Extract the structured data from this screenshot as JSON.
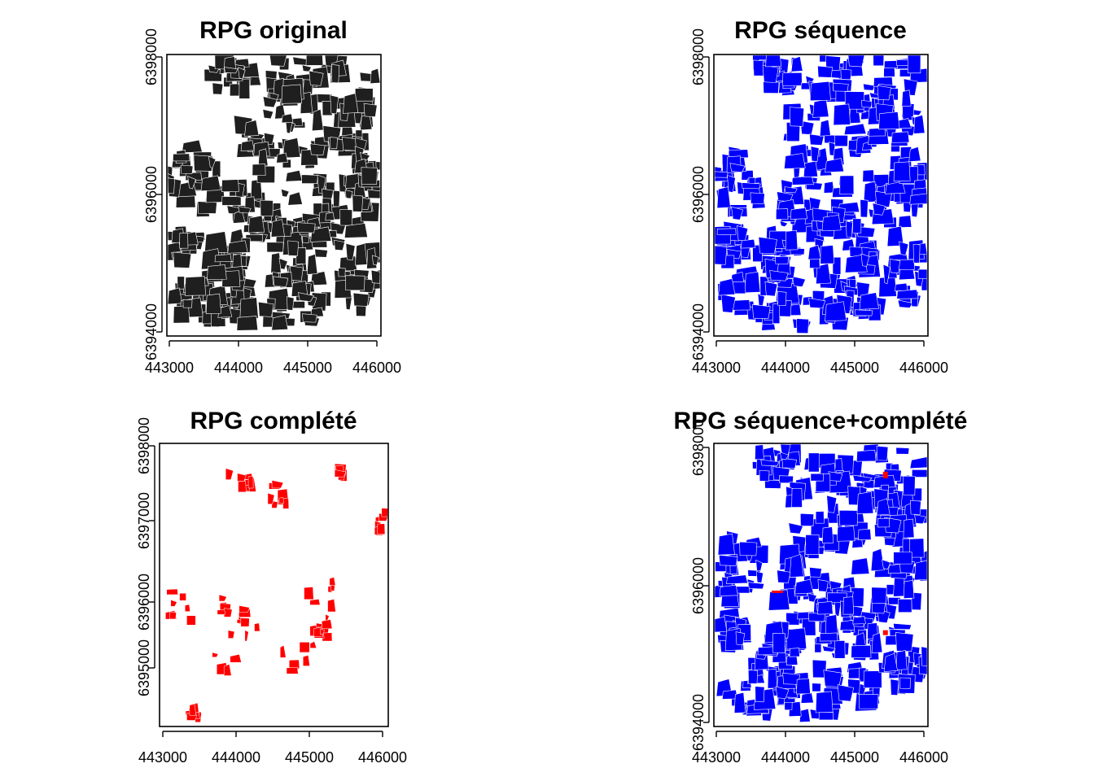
{
  "panels": [
    {
      "id": "original",
      "title": "RPG original",
      "fill_color": "#1f1f1f",
      "x_ticks": [
        "443000",
        "444000",
        "445000",
        "446000"
      ],
      "y_ticks": [
        "6394000",
        "6396000",
        "6398000"
      ],
      "content": "dense parcels"
    },
    {
      "id": "sequence",
      "title": "RPG séquence",
      "fill_color": "#0000ff",
      "x_ticks": [
        "443000",
        "444000",
        "445000",
        "446000"
      ],
      "y_ticks": [
        "6394000",
        "6396000",
        "6398000"
      ],
      "content": "dense parcels"
    },
    {
      "id": "complete",
      "title": "RPG complété",
      "fill_color": "#ff0000",
      "x_ticks": [
        "443000",
        "444000",
        "445000",
        "446000"
      ],
      "y_ticks": [
        "6395000",
        "6396000",
        "6397000",
        "6398000"
      ],
      "content": "sparse parcels"
    },
    {
      "id": "sequence-complete",
      "title": "RPG séquence+complété",
      "fill_color": "#0000ff",
      "accent_color": "#ff0000",
      "x_ticks": [
        "443000",
        "444000",
        "445000",
        "446000"
      ],
      "y_ticks": [
        "6394000",
        "6396000",
        "6398000"
      ],
      "content": "dense parcels with red highlights"
    }
  ]
}
